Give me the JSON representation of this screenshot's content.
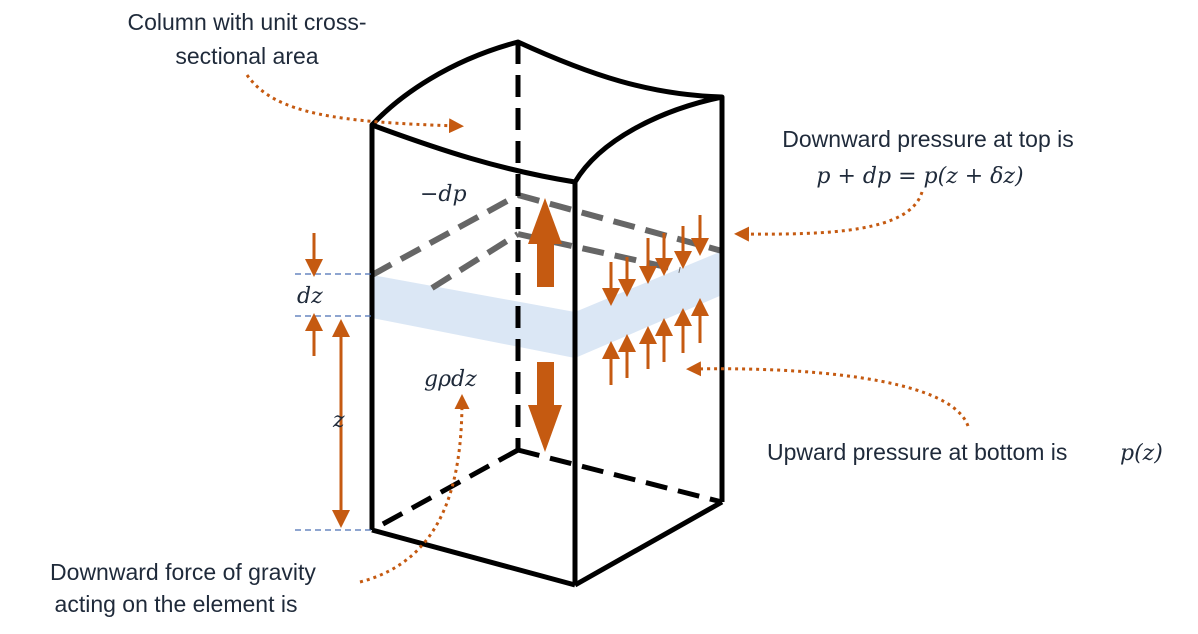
{
  "labels": {
    "column_line1": "Column with unit cross-",
    "column_line2": "sectional area",
    "top_pressure_line1": "Downward pressure at top is",
    "top_pressure_eq": "p + dp = p(z + δz)",
    "bottom_pressure_text": "Upward pressure at bottom is",
    "bottom_pressure_eq": "p(z)",
    "gravity_line1": "Downward force of gravity",
    "gravity_line2": "acting on the element is",
    "minus_dp": "−dp",
    "g_rho_dz": "gρdz",
    "dz": "dz",
    "z": "z"
  },
  "colors": {
    "edge": "#000000",
    "hidden_edge_dark": "#000000",
    "dashed_plane": "#666666",
    "arrow": "#c55a11",
    "slab": "#dbe7f5",
    "guide": "#4a6fb5",
    "text": "#1f2a3a"
  },
  "icons": [
    "up-arrow-icon",
    "down-arrow-icon"
  ]
}
